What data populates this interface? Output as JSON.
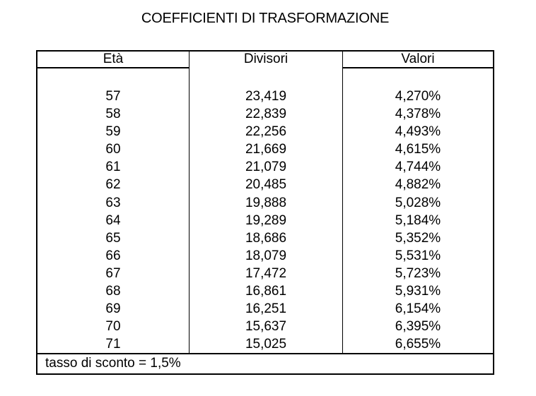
{
  "title": "COEFFICIENTI DI TRASFORMAZIONE",
  "table": {
    "columns": [
      "Età",
      "Divisori",
      "Valori"
    ],
    "rows": [
      {
        "eta": "57",
        "divisori": "23,419",
        "valori": "4,270%"
      },
      {
        "eta": "58",
        "divisori": "22,839",
        "valori": "4,378%"
      },
      {
        "eta": "59",
        "divisori": "22,256",
        "valori": "4,493%"
      },
      {
        "eta": "60",
        "divisori": "21,669",
        "valori": "4,615%"
      },
      {
        "eta": "61",
        "divisori": "21,079",
        "valori": "4,744%"
      },
      {
        "eta": "62",
        "divisori": "20,485",
        "valori": "4,882%"
      },
      {
        "eta": "63",
        "divisori": "19,888",
        "valori": "5,028%"
      },
      {
        "eta": "64",
        "divisori": "19,289",
        "valori": "5,184%"
      },
      {
        "eta": "65",
        "divisori": "18,686",
        "valori": "5,352%"
      },
      {
        "eta": "66",
        "divisori": "18,079",
        "valori": "5,531%"
      },
      {
        "eta": "67",
        "divisori": "17,472",
        "valori": "5,723%"
      },
      {
        "eta": "68",
        "divisori": "16,861",
        "valori": "5,931%"
      },
      {
        "eta": "69",
        "divisori": "16,251",
        "valori": "6,154%"
      },
      {
        "eta": "70",
        "divisori": "15,637",
        "valori": "6,395%"
      },
      {
        "eta": "71",
        "divisori": "15,025",
        "valori": "6,655%"
      }
    ],
    "footer": "tasso di sconto = 1,5%"
  },
  "colors": {
    "background": "#ffffff",
    "text": "#000000",
    "border": "#000000"
  }
}
